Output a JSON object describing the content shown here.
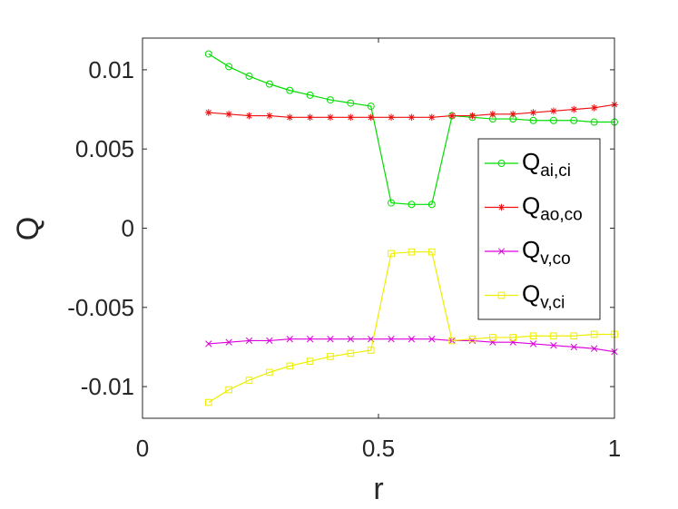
{
  "chart_data": {
    "type": "line",
    "title": "",
    "xlabel": "r",
    "ylabel": "Q",
    "xlim": [
      0,
      1
    ],
    "ylim": [
      -0.012,
      0.012
    ],
    "xticks": [
      0,
      0.5,
      1
    ],
    "xtick_labels": [
      "0",
      "0.5",
      "1"
    ],
    "yticks": [
      -0.01,
      -0.005,
      0,
      0.005,
      0.01
    ],
    "ytick_labels": [
      "-0.01",
      "-0.005",
      "0",
      "0.005",
      "0.01"
    ],
    "grid": false,
    "legend_position": "right",
    "x": [
      0.14,
      0.183,
      0.226,
      0.269,
      0.312,
      0.355,
      0.398,
      0.441,
      0.484,
      0.527,
      0.57,
      0.613,
      0.656,
      0.699,
      0.742,
      0.785,
      0.828,
      0.871,
      0.914,
      0.957,
      1.0
    ],
    "series": [
      {
        "name": "Q_ai,ci",
        "label_main": "Q",
        "label_sub": "ai,ci",
        "color": "#00dd00",
        "marker": "circle",
        "values": [
          0.011,
          0.0102,
          0.0096,
          0.0091,
          0.0087,
          0.0084,
          0.0081,
          0.0079,
          0.0077,
          0.0016,
          0.0015,
          0.0015,
          0.0071,
          0.007,
          0.0069,
          0.0069,
          0.0068,
          0.0068,
          0.0068,
          0.0067,
          0.0067
        ]
      },
      {
        "name": "Q_ao,co",
        "label_main": "Q",
        "label_sub": "ao,co",
        "color": "#ee1111",
        "marker": "asterisk",
        "values": [
          0.0073,
          0.0072,
          0.0071,
          0.0071,
          0.007,
          0.007,
          0.007,
          0.007,
          0.007,
          0.007,
          0.007,
          0.007,
          0.0071,
          0.0071,
          0.0072,
          0.0072,
          0.0073,
          0.0074,
          0.0075,
          0.0076,
          0.0078
        ]
      },
      {
        "name": "Q_v,co",
        "label_main": "Q",
        "label_sub": "v,co",
        "color": "#dd00dd",
        "marker": "x",
        "values": [
          -0.0073,
          -0.0072,
          -0.0071,
          -0.0071,
          -0.007,
          -0.007,
          -0.007,
          -0.007,
          -0.007,
          -0.007,
          -0.007,
          -0.007,
          -0.0071,
          -0.0071,
          -0.0072,
          -0.0072,
          -0.0073,
          -0.0074,
          -0.0075,
          -0.0076,
          -0.0078
        ]
      },
      {
        "name": "Q_v,ci",
        "label_main": "Q",
        "label_sub": "v,ci",
        "color": "#eeee00",
        "marker": "square",
        "values": [
          -0.011,
          -0.0102,
          -0.0096,
          -0.0091,
          -0.0087,
          -0.0084,
          -0.0081,
          -0.0079,
          -0.0077,
          -0.0016,
          -0.0015,
          -0.0015,
          -0.0071,
          -0.007,
          -0.0069,
          -0.0069,
          -0.0068,
          -0.0068,
          -0.0068,
          -0.0067,
          -0.0067
        ]
      }
    ]
  }
}
